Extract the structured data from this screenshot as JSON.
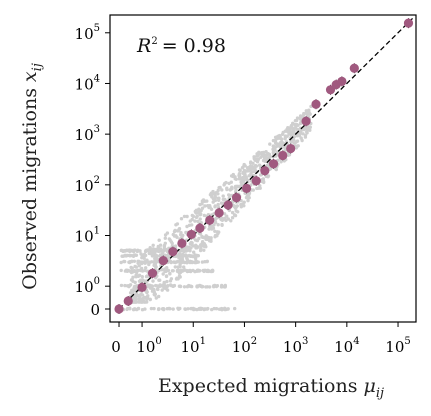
{
  "chart_data": {
    "type": "scatter",
    "title": "",
    "xlabel": "Expected migrations",
    "xlabel_symbol": "μ",
    "xlabel_subscript": "ij",
    "ylabel": "Observed migrations",
    "ylabel_symbol": "x",
    "ylabel_subscript": "ij",
    "x_scale": "symlog",
    "y_scale": "symlog",
    "xlim": [
      0,
      200000
    ],
    "ylim": [
      0,
      200000
    ],
    "x_ticks": [
      {
        "value": 0,
        "base": "0",
        "exp": ""
      },
      {
        "value": 1,
        "base": "10",
        "exp": "0"
      },
      {
        "value": 10,
        "base": "10",
        "exp": "1"
      },
      {
        "value": 100,
        "base": "10",
        "exp": "2"
      },
      {
        "value": 1000,
        "base": "10",
        "exp": "3"
      },
      {
        "value": 10000,
        "base": "10",
        "exp": "4"
      },
      {
        "value": 100000,
        "base": "10",
        "exp": "5"
      }
    ],
    "y_ticks": [
      {
        "value": 0,
        "base": "0",
        "exp": ""
      },
      {
        "value": 1,
        "base": "10",
        "exp": "0"
      },
      {
        "value": 10,
        "base": "10",
        "exp": "1"
      },
      {
        "value": 100,
        "base": "10",
        "exp": "2"
      },
      {
        "value": 1000,
        "base": "10",
        "exp": "3"
      },
      {
        "value": 10000,
        "base": "10",
        "exp": "4"
      },
      {
        "value": 100000,
        "base": "10",
        "exp": "5"
      }
    ],
    "annotation": {
      "lhs": "R",
      "exp": "2",
      "rhs": "= 0.98"
    },
    "grid": false,
    "identity_line": true,
    "colors": {
      "binned_points": "#a0597f",
      "raw_points": "#cfcfcf",
      "identity_line": "#000000",
      "point_edge": "#4a2a3c"
    },
    "series": [
      {
        "role": "binned",
        "x": [
          0,
          0.4,
          1.0,
          1.6,
          2.6,
          4.0,
          6.0,
          9.2,
          13.5,
          21,
          32,
          48,
          70,
          110,
          170,
          250,
          370,
          560,
          800,
          1600,
          2500,
          4800,
          6200,
          8000,
          14000,
          160000
        ],
        "y": [
          0,
          0.35,
          0.95,
          1.8,
          3.2,
          4.8,
          7,
          10.5,
          14,
          20,
          28,
          40,
          56,
          85,
          120,
          190,
          260,
          380,
          520,
          1800,
          3900,
          7500,
          9500,
          11000,
          20000,
          155000
        ]
      }
    ]
  }
}
